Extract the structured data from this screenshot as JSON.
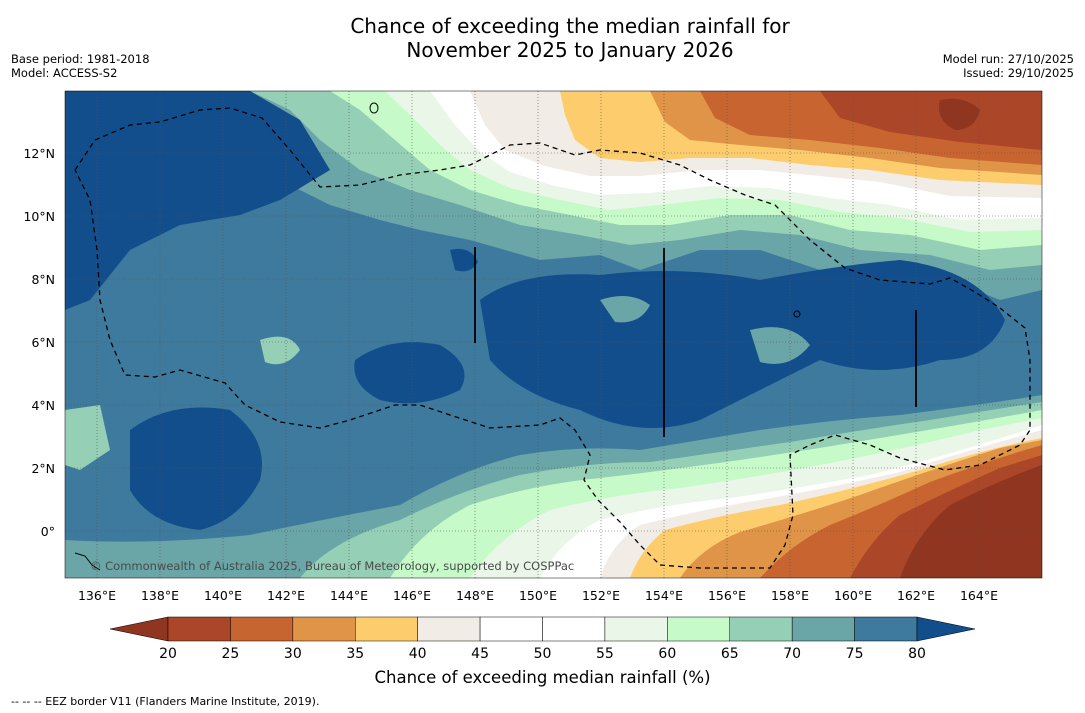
{
  "header": {
    "title_line1": "Chance of exceeding the median rainfall for",
    "title_line2": "November 2025 to January 2026",
    "base_period": "Base period: 1981-2018",
    "model": "Model: ACCESS-S2",
    "model_run": "Model run: 27/10/2025",
    "issued": "Issued: 29/10/2025"
  },
  "map": {
    "copyright": "© Commonwealth of Australia 2025, Bureau of Meteorology, supported by COSPPac",
    "lon_labels": [
      "136°E",
      "138°E",
      "140°E",
      "142°E",
      "144°E",
      "146°E",
      "148°E",
      "150°E",
      "152°E",
      "154°E",
      "156°E",
      "158°E",
      "160°E",
      "162°E",
      "164°E"
    ],
    "lat_labels": [
      "12°N",
      "10°N",
      "8°N",
      "6°N",
      "4°N",
      "2°N",
      "0°"
    ]
  },
  "colorbar": {
    "ticks": [
      "20",
      "25",
      "30",
      "35",
      "40",
      "45",
      "50",
      "55",
      "60",
      "65",
      "70",
      "75",
      "80"
    ],
    "colors": [
      "#ab4628",
      "#c8642f",
      "#e09447",
      "#fdcd6d",
      "#f1ece5",
      "#ffffff",
      "#ffffff",
      "#eaf6e8",
      "#c7fac9",
      "#95cfb5",
      "#6aa5a7",
      "#3e7a9d",
      "#124e8c"
    ],
    "under_color": "#8f3520",
    "over_color": "#124e8c",
    "label": "Chance of exceeding median rainfall (%)"
  },
  "legend_note": "--  --  -- EEZ border V11 (Flanders Marine Institute, 2019)."
}
